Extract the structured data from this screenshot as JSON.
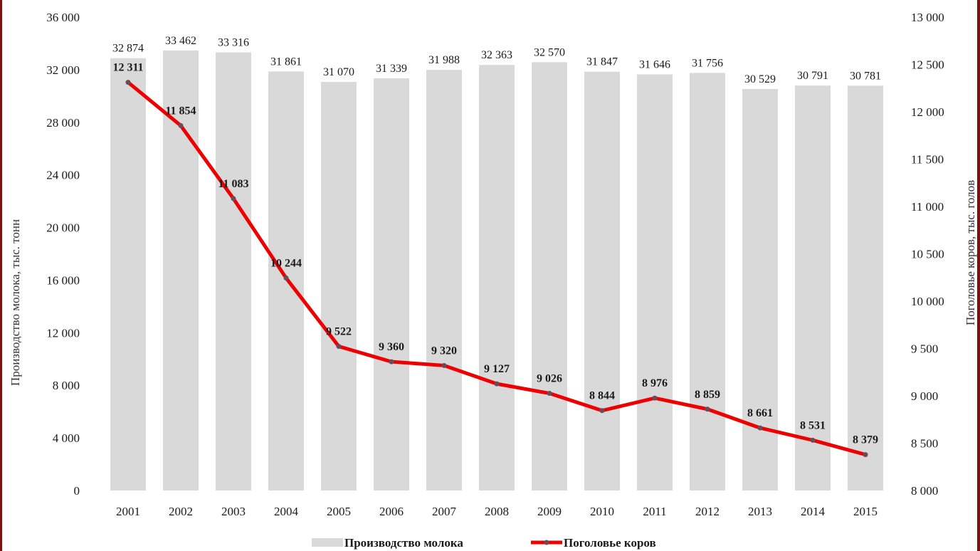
{
  "chart_data": {
    "type": "bar",
    "categories": [
      "2001",
      "2002",
      "2003",
      "2004",
      "2005",
      "2006",
      "2007",
      "2008",
      "2009",
      "2010",
      "2011",
      "2012",
      "2013",
      "2014",
      "2015"
    ],
    "series": [
      {
        "name": "Производство молока",
        "type": "bar",
        "axis": "left",
        "values": [
          32874,
          33462,
          33316,
          31861,
          31070,
          31339,
          31988,
          32363,
          32570,
          31847,
          31646,
          31756,
          30529,
          30791,
          30781
        ],
        "labels": [
          "32 874",
          "33 462",
          "33 316",
          "31 861",
          "31 070",
          "31 339",
          "31 988",
          "32 363",
          "32 570",
          "31 847",
          "31 646",
          "31 756",
          "30 529",
          "30 791",
          "30 781"
        ]
      },
      {
        "name": "Поголовье коров",
        "type": "line",
        "axis": "right",
        "values": [
          12311,
          11854,
          11083,
          10244,
          9522,
          9360,
          9320,
          9127,
          9026,
          8844,
          8976,
          8859,
          8661,
          8531,
          8379
        ],
        "labels": [
          "12 311",
          "11 854",
          "11 083",
          "10 244",
          "9 522",
          "9 360",
          "9 320",
          "9 127",
          "9 026",
          "8 844",
          "8 976",
          "8 859",
          "8 661",
          "8 531",
          "8 379"
        ]
      }
    ],
    "y_left": {
      "label": "Производство молока, тыс. тонн",
      "ylim": [
        0,
        36000
      ],
      "ticks": [
        0,
        4000,
        8000,
        12000,
        16000,
        20000,
        24000,
        28000,
        32000,
        36000
      ],
      "tick_labels": [
        "0",
        "4 000",
        "8 000",
        "12 000",
        "16 000",
        "20 000",
        "24 000",
        "28 000",
        "32 000",
        "36 000"
      ]
    },
    "y_right": {
      "label": "Поголовье коров, тыс. голов",
      "ylim": [
        8000,
        13000
      ],
      "ticks": [
        8000,
        8500,
        9000,
        9500,
        10000,
        10500,
        11000,
        11500,
        12000,
        12500,
        13000
      ],
      "tick_labels": [
        "8 000",
        "8 500",
        "9 000",
        "9 500",
        "10 000",
        "10 500",
        "11 000",
        "11 500",
        "12 000",
        "12 500",
        "13 000"
      ]
    },
    "grid": false,
    "legend_position": "bottom",
    "colors": {
      "bar": "#d9d9d9",
      "line": "#ee0000",
      "marker": "#6b4a5a"
    }
  }
}
